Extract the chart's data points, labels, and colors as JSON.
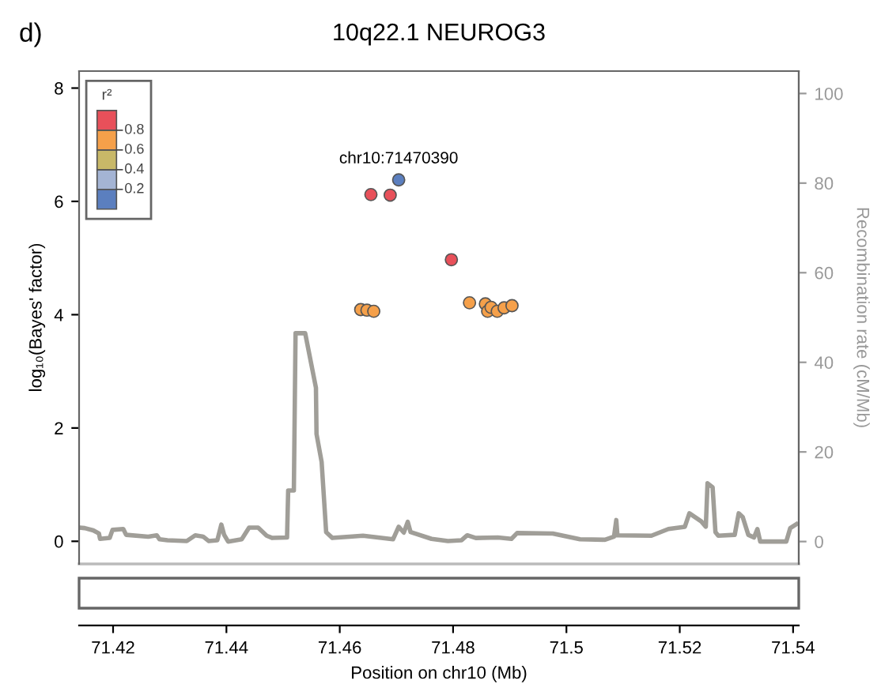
{
  "chart_data": {
    "type": "scatter",
    "title": "10q22.1 NEUROG3",
    "xlabel": "Position on chr10 (Mb)",
    "ylabel": "log₁₀(Bayes' factor)",
    "y2label": "Recombination rate (cM/Mb)",
    "annotations": [
      "d)",
      {
        "text": "chr10:71470390",
        "x": 71.4704,
        "y": 6.38
      },
      "0.8",
      "0.6",
      "0.4",
      "0.2"
    ],
    "clabel": "r²",
    "colors": [
      "#5b7fbf",
      "#a4b4d4",
      "#c8b868",
      "#f5a04a",
      "#e8505a"
    ],
    "xlim": [
      71.414,
      71.541
    ],
    "xticks": [
      71.42,
      71.44,
      71.46,
      71.48,
      71.5,
      71.52,
      71.54
    ],
    "ylim": [
      -0.4,
      8.3
    ],
    "yticks": [
      0,
      2,
      4,
      6,
      8
    ],
    "y2lim": [
      -5,
      105
    ],
    "y2ticks": [
      0,
      20,
      40,
      60,
      80,
      100
    ],
    "marker": "circle",
    "grid": false,
    "series": [
      {
        "x": [
          71.4704,
          71.4655,
          71.4689,
          71.4797,
          71.4637,
          71.4648,
          71.466,
          71.4829,
          71.4857,
          71.4861,
          71.4867,
          71.4878,
          71.489,
          71.4904
        ],
        "values": [
          6.38,
          6.12,
          6.11,
          4.97,
          4.09,
          4.08,
          4.06,
          4.21,
          4.19,
          4.06,
          4.13,
          4.06,
          4.12,
          4.16
        ],
        "colors": [
          "#5b7fbf",
          "#e8505a",
          "#e8505a",
          "#e8505a",
          "#f5a04a",
          "#f5a04a",
          "#f5a04a",
          "#f5a04a",
          "#f5a04a",
          "#f5a04a",
          "#f5a04a",
          "#f5a04a",
          "#f5a04a",
          "#f5a04a"
        ]
      },
      {
        "type": "line",
        "axis": "y2",
        "color": "#a09e98",
        "marker": "none",
        "x": [
          71.4141,
          71.415,
          71.4165,
          71.4175,
          71.4177,
          71.4194,
          71.4199,
          71.4218,
          71.4223,
          71.4262,
          71.4277,
          71.4282,
          71.4296,
          71.433,
          71.4345,
          71.4359,
          71.4369,
          71.4384,
          71.4391,
          71.4396,
          71.4403,
          71.4427,
          71.444,
          71.4456,
          71.4471,
          71.4481,
          71.4507,
          71.4509,
          71.4519,
          71.4522,
          71.4539,
          71.4558,
          71.4559,
          71.4568,
          71.4576,
          71.4587,
          71.4617,
          71.4641,
          71.4694,
          71.4704,
          71.4713,
          71.472,
          71.4725,
          71.4762,
          71.4791,
          71.4815,
          71.4825,
          71.484,
          71.4879,
          71.4903,
          71.4913,
          71.4976,
          71.5024,
          71.5068,
          71.5084,
          71.5088,
          71.509,
          71.515,
          71.518,
          71.5209,
          71.5217,
          71.5238,
          71.5246,
          71.5249,
          71.5258,
          71.5263,
          71.5268,
          71.5297,
          71.5304,
          71.5311,
          71.5321,
          71.5331,
          71.5337,
          71.5342,
          71.5388,
          71.5395,
          71.5406
        ],
        "values": [
          3.1,
          3.0,
          2.5,
          1.8,
          0.6,
          0.8,
          2.6,
          2.8,
          1.5,
          1.1,
          1.4,
          0.5,
          0.3,
          0.1,
          1.4,
          1.1,
          0.1,
          0.3,
          3.8,
          1.5,
          0,
          0.5,
          3.1,
          3.1,
          1.3,
          0.8,
          0.9,
          11.4,
          11.4,
          46.5,
          46.5,
          34.3,
          24,
          17.8,
          2.1,
          0.8,
          1.1,
          1.3,
          0.5,
          3.3,
          2,
          4.4,
          2.1,
          0.6,
          0.1,
          0.3,
          1.4,
          0.8,
          0.9,
          0.6,
          1.9,
          1.8,
          0.5,
          0.4,
          1.1,
          4.8,
          1.4,
          1.3,
          2.8,
          3.3,
          6.3,
          4.5,
          3.3,
          13,
          12.1,
          2.1,
          1.3,
          1.5,
          6.3,
          5.5,
          1.5,
          0.9,
          2.8,
          0,
          0,
          3,
          3.9
        ]
      }
    ]
  }
}
